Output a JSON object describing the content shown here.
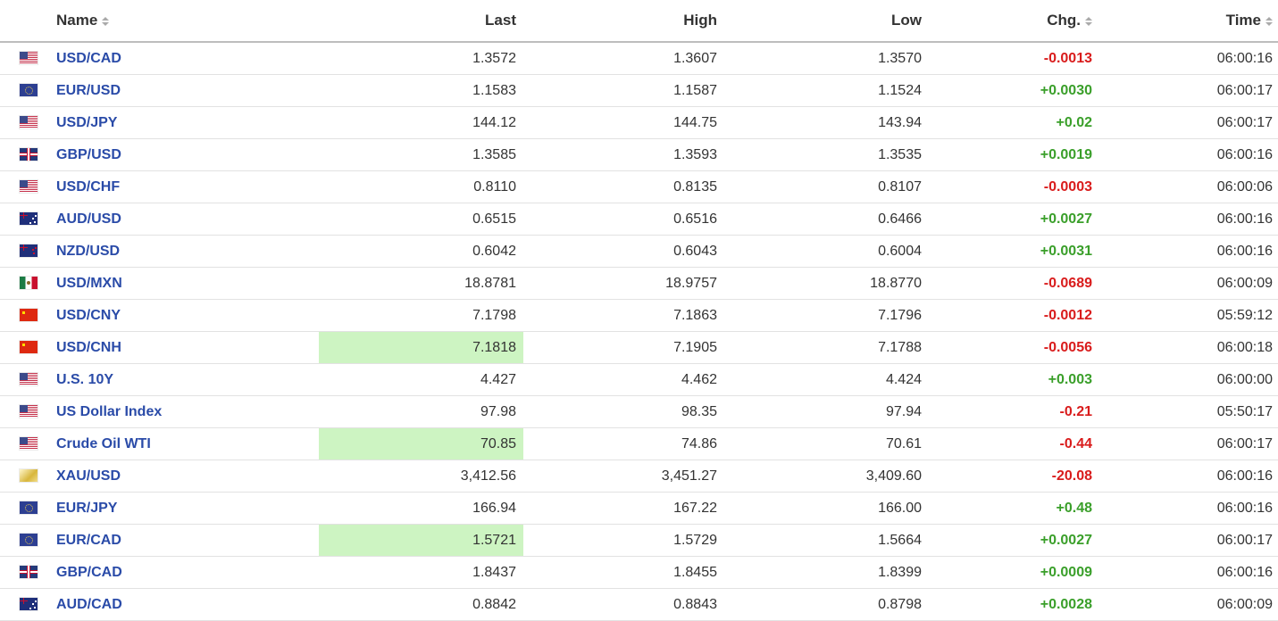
{
  "header": {
    "name": "Name",
    "last": "Last",
    "high": "High",
    "low": "Low",
    "chg": "Chg.",
    "time": "Time"
  },
  "rows": [
    {
      "flag": "us-flag",
      "name": "USD/CAD",
      "last": "1.3572",
      "high": "1.3607",
      "low": "1.3570",
      "chg": "-0.0013",
      "dir": "neg",
      "time": "06:00:16",
      "highlight": false
    },
    {
      "flag": "eu-flag",
      "name": "EUR/USD",
      "last": "1.1583",
      "high": "1.1587",
      "low": "1.1524",
      "chg": "+0.0030",
      "dir": "pos",
      "time": "06:00:17",
      "highlight": false
    },
    {
      "flag": "us-flag",
      "name": "USD/JPY",
      "last": "144.12",
      "high": "144.75",
      "low": "143.94",
      "chg": "+0.02",
      "dir": "pos",
      "time": "06:00:17",
      "highlight": false
    },
    {
      "flag": "gb-flag",
      "name": "GBP/USD",
      "last": "1.3585",
      "high": "1.3593",
      "low": "1.3535",
      "chg": "+0.0019",
      "dir": "pos",
      "time": "06:00:16",
      "highlight": false
    },
    {
      "flag": "us-flag",
      "name": "USD/CHF",
      "last": "0.8110",
      "high": "0.8135",
      "low": "0.8107",
      "chg": "-0.0003",
      "dir": "neg",
      "time": "06:00:06",
      "highlight": false
    },
    {
      "flag": "au-flag",
      "name": "AUD/USD",
      "last": "0.6515",
      "high": "0.6516",
      "low": "0.6466",
      "chg": "+0.0027",
      "dir": "pos",
      "time": "06:00:16",
      "highlight": false
    },
    {
      "flag": "nz-flag",
      "name": "NZD/USD",
      "last": "0.6042",
      "high": "0.6043",
      "low": "0.6004",
      "chg": "+0.0031",
      "dir": "pos",
      "time": "06:00:16",
      "highlight": false
    },
    {
      "flag": "mx-flag",
      "name": "USD/MXN",
      "last": "18.8781",
      "high": "18.9757",
      "low": "18.8770",
      "chg": "-0.0689",
      "dir": "neg",
      "time": "06:00:09",
      "highlight": false
    },
    {
      "flag": "cn-flag",
      "name": "USD/CNY",
      "last": "7.1798",
      "high": "7.1863",
      "low": "7.1796",
      "chg": "-0.0012",
      "dir": "neg",
      "time": "05:59:12",
      "highlight": false
    },
    {
      "flag": "cn-flag",
      "name": "USD/CNH",
      "last": "7.1818",
      "high": "7.1905",
      "low": "7.1788",
      "chg": "-0.0056",
      "dir": "neg",
      "time": "06:00:18",
      "highlight": true
    },
    {
      "flag": "us-flag",
      "name": "U.S. 10Y",
      "last": "4.427",
      "high": "4.462",
      "low": "4.424",
      "chg": "+0.003",
      "dir": "pos",
      "time": "06:00:00",
      "highlight": false
    },
    {
      "flag": "us-flag",
      "name": "US Dollar Index",
      "last": "97.98",
      "high": "98.35",
      "low": "97.94",
      "chg": "-0.21",
      "dir": "neg",
      "time": "05:50:17",
      "highlight": false
    },
    {
      "flag": "us-flag",
      "name": "Crude Oil WTI",
      "last": "70.85",
      "high": "74.86",
      "low": "70.61",
      "chg": "-0.44",
      "dir": "neg",
      "time": "06:00:17",
      "highlight": true
    },
    {
      "flag": "gold-flag",
      "name": "XAU/USD",
      "last": "3,412.56",
      "high": "3,451.27",
      "low": "3,409.60",
      "chg": "-20.08",
      "dir": "neg",
      "time": "06:00:16",
      "highlight": false
    },
    {
      "flag": "eu-flag",
      "name": "EUR/JPY",
      "last": "166.94",
      "high": "167.22",
      "low": "166.00",
      "chg": "+0.48",
      "dir": "pos",
      "time": "06:00:16",
      "highlight": false
    },
    {
      "flag": "eu-flag",
      "name": "EUR/CAD",
      "last": "1.5721",
      "high": "1.5729",
      "low": "1.5664",
      "chg": "+0.0027",
      "dir": "pos",
      "time": "06:00:17",
      "highlight": true
    },
    {
      "flag": "gb-flag",
      "name": "GBP/CAD",
      "last": "1.8437",
      "high": "1.8455",
      "low": "1.8399",
      "chg": "+0.0009",
      "dir": "pos",
      "time": "06:00:16",
      "highlight": false
    },
    {
      "flag": "au-flag",
      "name": "AUD/CAD",
      "last": "0.8842",
      "high": "0.8843",
      "low": "0.8798",
      "chg": "+0.0028",
      "dir": "pos",
      "time": "06:00:09",
      "highlight": false
    }
  ],
  "colors": {
    "link": "#2a4ba8",
    "positive": "#3a9f2a",
    "negative": "#d91c1c",
    "highlight": "#cdf4c2"
  }
}
